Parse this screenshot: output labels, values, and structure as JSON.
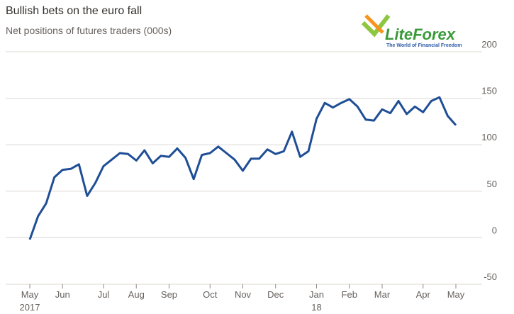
{
  "chart_data": {
    "type": "line",
    "title": "Bullish bets on the euro fall",
    "subtitle": "Net positions of futures traders (000s)",
    "watermark": {
      "brand": "LiteForex",
      "tagline": "The World of Financial Freedom"
    },
    "categories": [
      "May 2017",
      null,
      null,
      null,
      "Jun",
      null,
      null,
      null,
      null,
      "Jul",
      null,
      null,
      null,
      "Aug",
      null,
      null,
      null,
      "Sep",
      null,
      null,
      null,
      null,
      "Oct",
      null,
      null,
      null,
      "Nov",
      null,
      null,
      null,
      "Dec",
      null,
      null,
      null,
      null,
      "Jan 18",
      null,
      null,
      null,
      "Feb",
      null,
      null,
      null,
      "Mar",
      null,
      null,
      null,
      null,
      "Apr",
      null,
      null,
      null,
      "May"
    ],
    "series": [
      {
        "name": "Net positions",
        "color": "#1f4e96",
        "values": [
          -2,
          23,
          37,
          65,
          73,
          74,
          79,
          45,
          59,
          77,
          84,
          91,
          90,
          83,
          94,
          80,
          88,
          87,
          96,
          86,
          63,
          89,
          91,
          98,
          91,
          84,
          72,
          85,
          85,
          95,
          90,
          93,
          114,
          87,
          93,
          128,
          145,
          140,
          145,
          149,
          141,
          127,
          126,
          138,
          134,
          147,
          133,
          141,
          135,
          147,
          151,
          131,
          121
        ]
      }
    ],
    "ylim": [
      -50,
      200
    ],
    "yticks": [
      -50,
      0,
      50,
      100,
      150,
      200
    ],
    "grid": true
  }
}
